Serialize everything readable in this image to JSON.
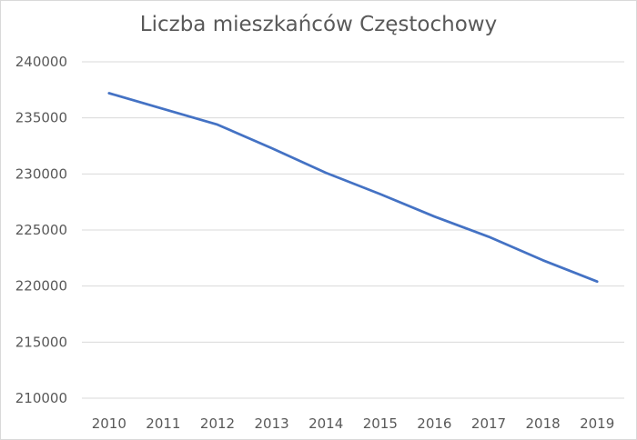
{
  "chart_data": {
    "type": "line",
    "title": "Liczba mieszkańców Częstochowy",
    "xlabel": "",
    "ylabel": "",
    "categories": [
      "2010",
      "2011",
      "2012",
      "2013",
      "2014",
      "2015",
      "2016",
      "2017",
      "2018",
      "2019"
    ],
    "series": [
      {
        "values": [
          237200,
          235800,
          234400,
          232300,
          230100,
          228200,
          226200,
          224400,
          222300,
          220400
        ]
      }
    ],
    "ylim": [
      210000,
      240000
    ],
    "yticks": [
      "210000",
      "215000",
      "220000",
      "225000",
      "230000",
      "235000",
      "240000"
    ],
    "grid": true,
    "legend": "none",
    "colors": {
      "line": "#4472c4",
      "grid": "#d9d9d9",
      "text": "#595959"
    }
  }
}
